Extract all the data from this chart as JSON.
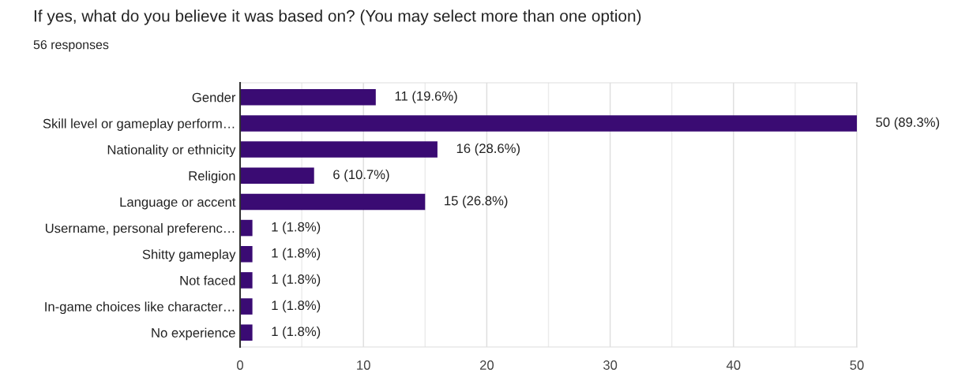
{
  "chart_data": {
    "type": "bar",
    "orientation": "horizontal",
    "title": "If yes, what do you believe it was based on? (You may select more than one option)",
    "subtitle": "56 responses",
    "categories": [
      "Gender",
      "Skill level or gameplay perform…",
      "Nationality or ethnicity",
      "Religion",
      "Language or accent",
      "Username, personal preferenc…",
      "Shitty gameplay",
      "Not faced",
      "In-game choices like character…",
      "No experience"
    ],
    "values": [
      11,
      50,
      16,
      6,
      15,
      1,
      1,
      1,
      1,
      1
    ],
    "value_labels": [
      "11 (19.6%)",
      "50 (89.3%)",
      "16 (28.6%)",
      "6 (10.7%)",
      "15 (26.8%)",
      "1 (1.8%)",
      "1 (1.8%)",
      "1 (1.8%)",
      "1 (1.8%)",
      "1 (1.8%)"
    ],
    "color": "#3a0b73",
    "xlim": [
      0,
      50
    ],
    "xticks": [
      0,
      {
        "value": 5,
        "label": null
      },
      10,
      {
        "value": 15,
        "label": null
      },
      20,
      {
        "value": 25,
        "label": null
      },
      30,
      {
        "value": 35,
        "label": null
      },
      40,
      {
        "value": 45,
        "label": null
      },
      50
    ],
    "grid": "x"
  }
}
